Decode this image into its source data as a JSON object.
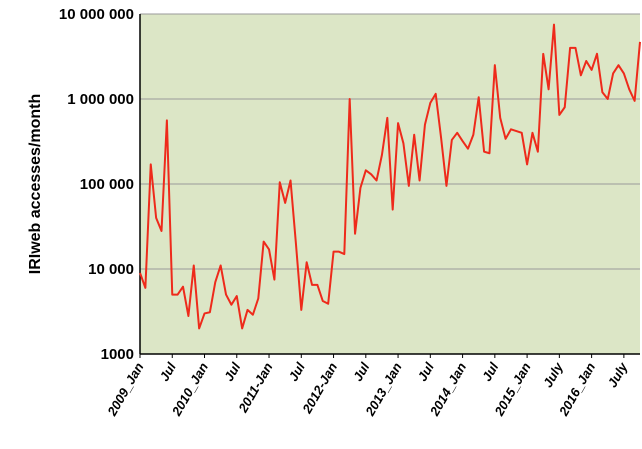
{
  "chart_data": {
    "type": "line",
    "y_label": "IRIweb accesses/month",
    "log_scale": true,
    "grid": true,
    "color": "#ee2a1b",
    "background": "#dce6c6",
    "categories": [
      "2009_Jan",
      null,
      null,
      null,
      null,
      null,
      "Jul",
      null,
      null,
      null,
      null,
      null,
      "2010_Jan",
      null,
      null,
      null,
      null,
      null,
      "Jul",
      null,
      null,
      null,
      null,
      null,
      "2011-Jan",
      null,
      null,
      null,
      null,
      null,
      "Jul",
      null,
      null,
      null,
      null,
      null,
      "2012-Jan",
      null,
      null,
      null,
      null,
      null,
      "Jul",
      null,
      null,
      null,
      null,
      null,
      "2013_Jan",
      null,
      null,
      null,
      null,
      null,
      "Jul",
      null,
      null,
      null,
      null,
      null,
      "2014_Jan",
      null,
      null,
      null,
      null,
      null,
      "Jul",
      null,
      null,
      null,
      null,
      null,
      "2015_Jan",
      null,
      null,
      null,
      null,
      null,
      "July",
      null,
      null,
      null,
      null,
      null,
      "2016_Jan",
      null,
      null,
      null,
      null,
      null,
      "July",
      null,
      null,
      null
    ],
    "values": [
      9000,
      6000,
      170000,
      40000,
      28000,
      560000,
      5000,
      5000,
      6200,
      2800,
      11000,
      2000,
      3000,
      3100,
      7000,
      11000,
      5000,
      3800,
      4800,
      2000,
      3300,
      2900,
      4500,
      21000,
      17000,
      7500,
      105000,
      60000,
      110000,
      20000,
      3300,
      12000,
      6500,
      6500,
      4200,
      3900,
      16000,
      16000,
      15000,
      1000000,
      26000,
      90000,
      145000,
      130000,
      110000,
      220000,
      600000,
      50000,
      520000,
      300000,
      95000,
      380000,
      110000,
      500000,
      900000,
      1150000,
      350000,
      95000,
      330000,
      400000,
      320000,
      260000,
      380000,
      1050000,
      240000,
      230000,
      2500000,
      600000,
      340000,
      440000,
      420000,
      400000,
      170000,
      400000,
      240000,
      3400000,
      1300000,
      7500000,
      650000,
      800000,
      4000000,
      4000000,
      1900000,
      2800000,
      2200000,
      3400000,
      1200000,
      1000000,
      2000000,
      2500000,
      2000000,
      1300000,
      950000,
      4700000
    ],
    "ylim": [
      1000,
      10000000
    ],
    "yticks": [
      {
        "value": 1000,
        "label": "1000"
      },
      {
        "value": 10000,
        "label": "10 000"
      },
      {
        "value": 100000,
        "label": "100 000"
      },
      {
        "value": 1000000,
        "label": "1 000 000"
      },
      {
        "value": 10000000,
        "label": "10 000 000"
      }
    ]
  }
}
